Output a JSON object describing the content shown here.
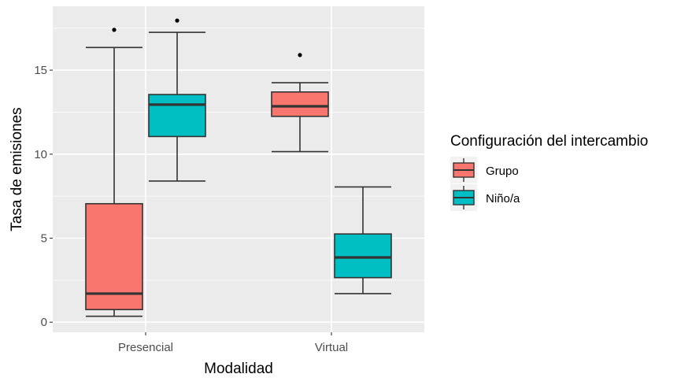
{
  "chart_data": {
    "type": "boxplot",
    "xlabel": "Modalidad",
    "ylabel": "Tasa de emisiones",
    "categories": [
      "Presencial",
      "Virtual"
    ],
    "yticks": [
      0,
      5,
      10,
      15
    ],
    "ylim": [
      -0.6,
      18.8
    ],
    "grid": true,
    "legend": {
      "title": "Configuración del intercambio",
      "position": "right",
      "items": [
        {
          "label": "Grupo",
          "color": "#F8766D"
        },
        {
          "label": "Niño/a",
          "color": "#00BFC4"
        }
      ]
    },
    "series": [
      {
        "name": "Grupo",
        "color": "#F8766D",
        "boxes": [
          {
            "category": "Presencial",
            "min": 0.35,
            "q1": 0.75,
            "median": 1.7,
            "q3": 7.05,
            "max": 16.35,
            "outliers": [
              17.4
            ]
          },
          {
            "category": "Virtual",
            "min": 10.15,
            "q1": 12.25,
            "median": 12.85,
            "q3": 13.7,
            "max": 14.25,
            "outliers": [
              15.9
            ]
          }
        ]
      },
      {
        "name": "Niño/a",
        "color": "#00BFC4",
        "boxes": [
          {
            "category": "Presencial",
            "min": 8.4,
            "q1": 11.05,
            "median": 12.95,
            "q3": 13.55,
            "max": 17.25,
            "outliers": [
              17.95
            ]
          },
          {
            "category": "Virtual",
            "min": 1.7,
            "q1": 2.65,
            "median": 3.85,
            "q3": 5.25,
            "max": 8.05,
            "outliers": []
          }
        ]
      }
    ]
  }
}
